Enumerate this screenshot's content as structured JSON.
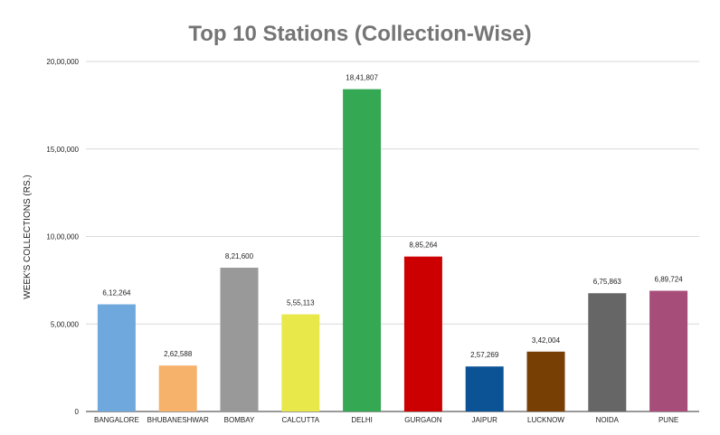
{
  "chart_data": {
    "type": "bar",
    "title": "Top 10 Stations (Collection-Wise)",
    "xlabel": "",
    "ylabel": "WEEK'S COLLECTIONS (RS.)",
    "ylim": [
      0,
      2000000
    ],
    "y_ticks": [
      0,
      500000,
      1000000,
      1500000,
      2000000
    ],
    "y_tick_labels": [
      "0",
      "5,00,000",
      "10,00,000",
      "15,00,000",
      "20,00,000"
    ],
    "grid": true,
    "legend": "none",
    "categories": [
      "BANGALORE",
      "BHUBANESHWAR",
      "BOMBAY",
      "CALCUTTA",
      "DELHI",
      "GURGAON",
      "JAIPUR",
      "LUCKNOW",
      "NOIDA",
      "PUNE"
    ],
    "values": [
      612264,
      262588,
      821600,
      555113,
      1841807,
      885264,
      257269,
      342004,
      675863,
      689724
    ],
    "data_labels": [
      "6,12,264",
      "2,62,588",
      "8,21,600",
      "5,55,113",
      "18,41,807",
      "8,85,264",
      "2,57,269",
      "3,42,004",
      "6,75,863",
      "6,89,724"
    ],
    "colors": [
      "#6fa8dc",
      "#f6b26b",
      "#999999",
      "#e9e84a",
      "#34a853",
      "#cc0000",
      "#0b5394",
      "#783f04",
      "#666666",
      "#a64d79"
    ]
  }
}
